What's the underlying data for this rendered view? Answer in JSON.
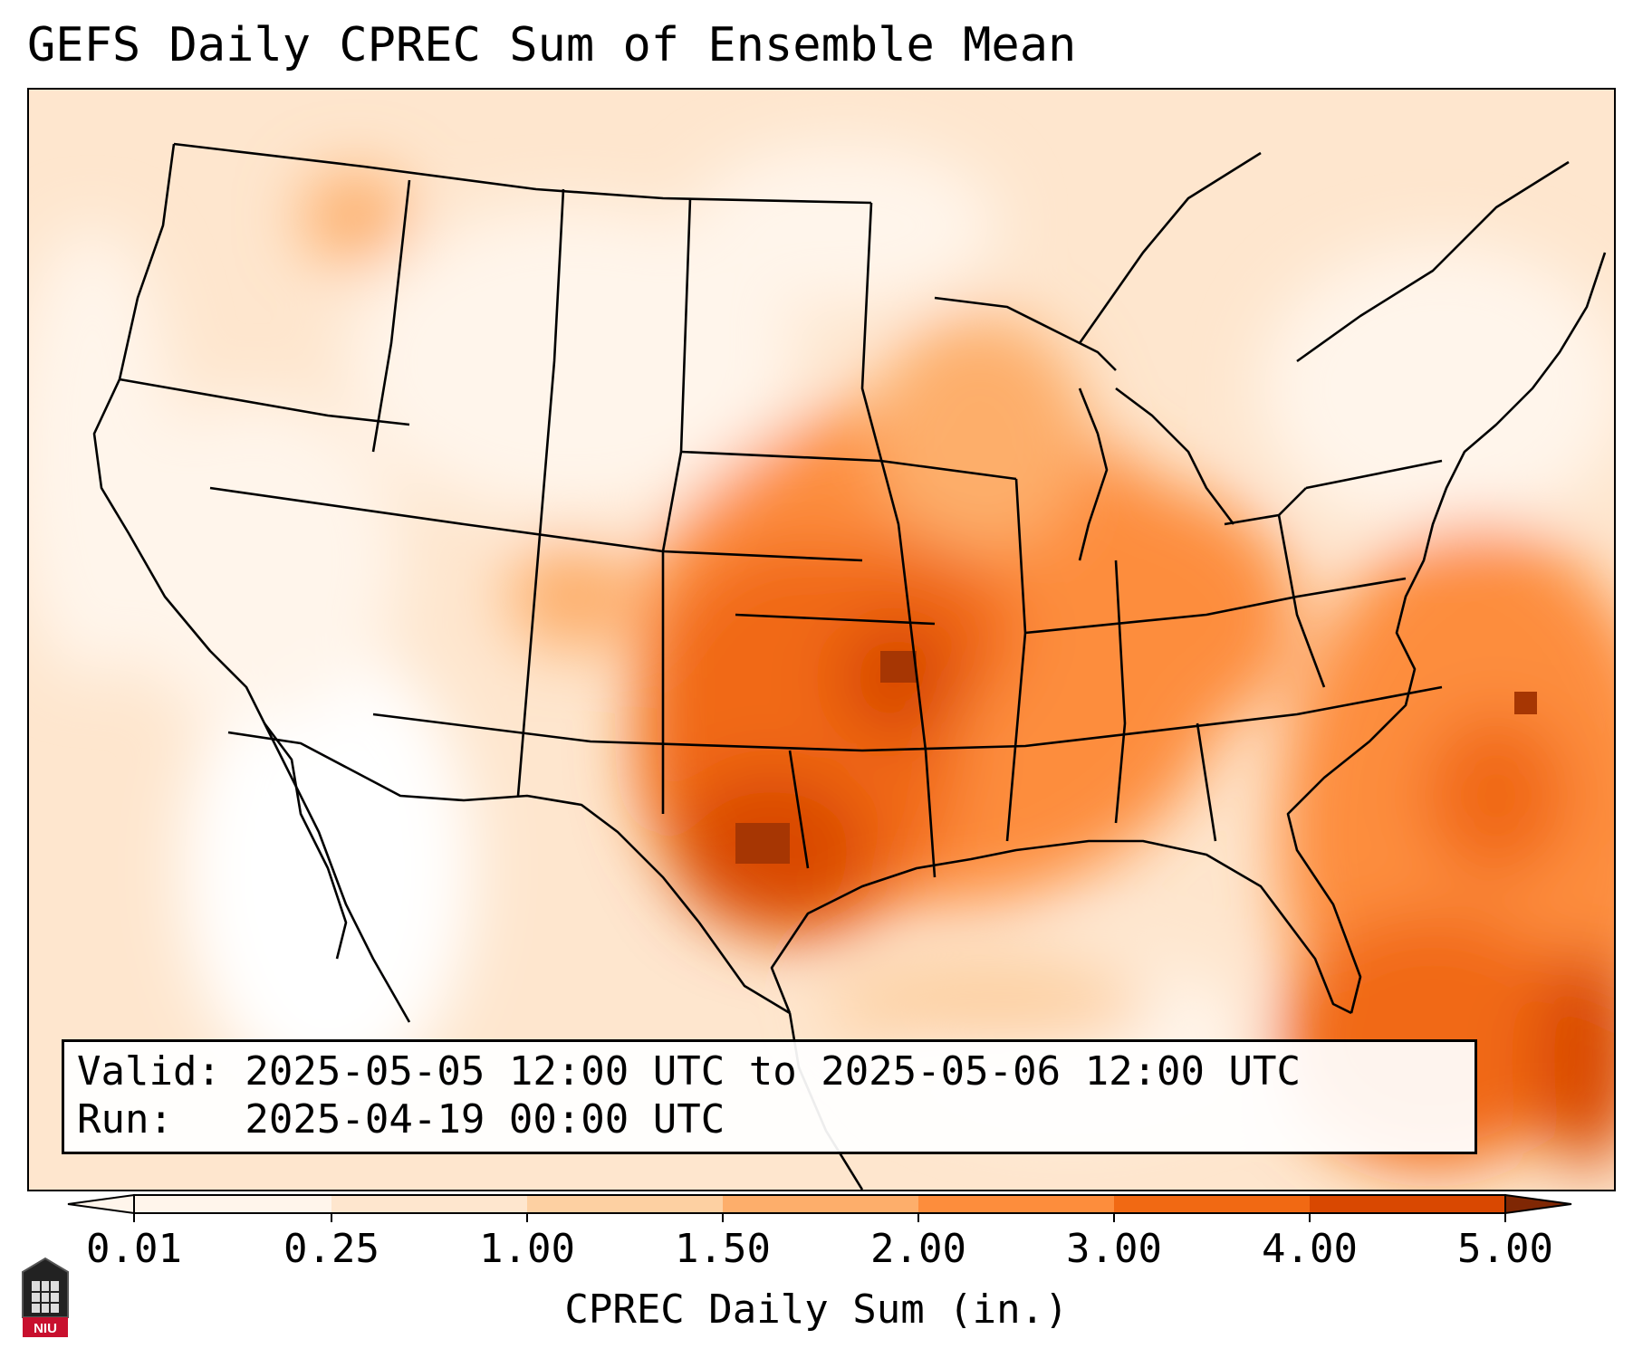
{
  "title": "GEFS Daily CPREC Sum of Ensemble Mean",
  "valid_line": "Valid: 2025-05-05 12:00 UTC to 2025-05-06 12:00 UTC",
  "run_line": "Run:   2025-04-19 00:00 UTC",
  "colorbar": {
    "label": "CPREC Daily Sum (in.)",
    "ticks": [
      "0.01",
      "0.25",
      "1.00",
      "1.50",
      "2.00",
      "3.00",
      "4.00",
      "5.00"
    ],
    "colors": [
      "#fff5eb",
      "#fee6ce",
      "#fdd0a2",
      "#fdae6b",
      "#fd8d3c",
      "#f16913",
      "#d94801",
      "#a63603",
      "#7f2704"
    ]
  },
  "logo_text": "NIU"
}
